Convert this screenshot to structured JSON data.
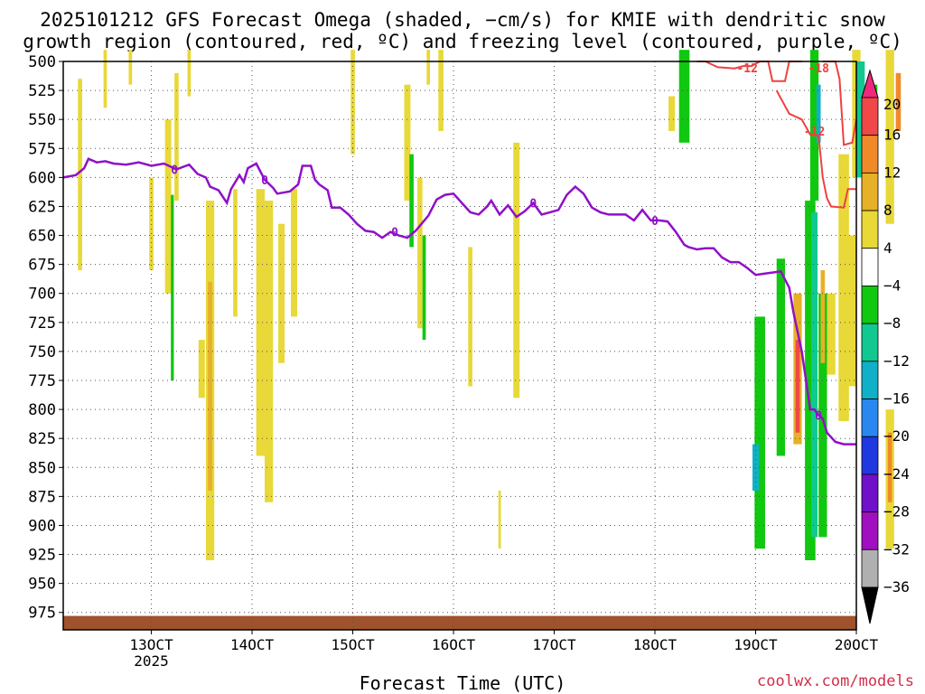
{
  "title_line1": "2025101212 GFS Forecast Omega (shaded, −cm/s) for KMIE with dendritic snow",
  "title_line2": "growth region (contoured, red, ºC) and freezing level (contoured, purple, ºC)",
  "credit": "coolwx.com/models",
  "chart_data": {
    "type": "heatmap",
    "xlabel": "Forecast Time (UTC)",
    "x_ticks": [
      "13OCT",
      "14OCT",
      "15OCT",
      "16OCT",
      "17OCT",
      "18OCT",
      "19OCT",
      "20OCT"
    ],
    "x_tick_sublabel": "2025",
    "y_ticks": [
      500,
      525,
      550,
      575,
      600,
      625,
      650,
      675,
      700,
      725,
      750,
      775,
      800,
      825,
      850,
      875,
      900,
      925,
      950,
      975
    ],
    "ylim": [
      500,
      990
    ],
    "xlim_hours": [
      -21,
      168
    ],
    "grid": true,
    "colorbar": {
      "labels": [
        "20",
        "16",
        "12",
        "8",
        "4",
        "−4",
        "−8",
        "−12",
        "−16",
        "−20",
        "−24",
        "−28",
        "−32",
        "−36"
      ],
      "colors": [
        "#f0287c",
        "#f04848",
        "#f08a28",
        "#e8b028",
        "#e8d838",
        "#ffffff",
        "#10c810",
        "#10c890",
        "#10b0c8",
        "#2888f0",
        "#2038e0",
        "#7010c8",
        "#a010c0",
        "#b0b0b0",
        "#000000"
      ]
    },
    "freezing_level": {
      "color": "#9010c8",
      "label": "0",
      "label_positions_hours": [
        5.5,
        27,
        58,
        91,
        120,
        159
      ],
      "points_hours_hpa": [
        [
          -21,
          600
        ],
        [
          -18,
          598
        ],
        [
          -16,
          592
        ],
        [
          -15,
          584
        ],
        [
          -13,
          587
        ],
        [
          -11,
          586
        ],
        [
          -9,
          588
        ],
        [
          -6,
          589
        ],
        [
          -3,
          587
        ],
        [
          0,
          590
        ],
        [
          3,
          588
        ],
        [
          6,
          593
        ],
        [
          9,
          589
        ],
        [
          11,
          597
        ],
        [
          13,
          600
        ],
        [
          14,
          608
        ],
        [
          16,
          611
        ],
        [
          18,
          622
        ],
        [
          19,
          610
        ],
        [
          21,
          598
        ],
        [
          22,
          604
        ],
        [
          23,
          592
        ],
        [
          25,
          588
        ],
        [
          27,
          602
        ],
        [
          29,
          609
        ],
        [
          30,
          614
        ],
        [
          33,
          612
        ],
        [
          35,
          606
        ],
        [
          36,
          590
        ],
        [
          38,
          590
        ],
        [
          39,
          602
        ],
        [
          40,
          606
        ],
        [
          42,
          611
        ],
        [
          43,
          626
        ],
        [
          45,
          626
        ],
        [
          47,
          632
        ],
        [
          49,
          640
        ],
        [
          51,
          646
        ],
        [
          53,
          647
        ],
        [
          55,
          652
        ],
        [
          57,
          647
        ],
        [
          59,
          650
        ],
        [
          61,
          652
        ],
        [
          63,
          646
        ],
        [
          66,
          633
        ],
        [
          68,
          619
        ],
        [
          70,
          615
        ],
        [
          72,
          614
        ],
        [
          74,
          622
        ],
        [
          76,
          630
        ],
        [
          78,
          632
        ],
        [
          80,
          625
        ],
        [
          81,
          620
        ],
        [
          83,
          632
        ],
        [
          85,
          624
        ],
        [
          87,
          634
        ],
        [
          89,
          629
        ],
        [
          91,
          622
        ],
        [
          93,
          632
        ],
        [
          95,
          630
        ],
        [
          97,
          628
        ],
        [
          99,
          615
        ],
        [
          101,
          608
        ],
        [
          103,
          614
        ],
        [
          105,
          626
        ],
        [
          107,
          630
        ],
        [
          109,
          632
        ],
        [
          111,
          632
        ],
        [
          113,
          632
        ],
        [
          115,
          637
        ],
        [
          117,
          628
        ],
        [
          119,
          637
        ],
        [
          121,
          637
        ],
        [
          123,
          638
        ],
        [
          125,
          647
        ],
        [
          127,
          658
        ],
        [
          128,
          660
        ],
        [
          130,
          662
        ],
        [
          132,
          661
        ],
        [
          134,
          661
        ],
        [
          136,
          669
        ],
        [
          138,
          673
        ],
        [
          140,
          673
        ],
        [
          142,
          678
        ],
        [
          144,
          684
        ],
        [
          146,
          683
        ],
        [
          148,
          682
        ],
        [
          150,
          681
        ],
        [
          151,
          688
        ],
        [
          152,
          695
        ],
        [
          153,
          716
        ],
        [
          155,
          750
        ],
        [
          156,
          775
        ],
        [
          157,
          800
        ],
        [
          158,
          800
        ],
        [
          159,
          805
        ],
        [
          160,
          808
        ],
        [
          161,
          820
        ],
        [
          163,
          828
        ],
        [
          165,
          830
        ],
        [
          168,
          830
        ]
      ]
    },
    "dendritic_contours": {
      "color": "#f04040",
      "labels": [
        "-12",
        "-12",
        "-18"
      ],
      "label_positions_hours_hpa": [
        [
          142,
          504
        ],
        [
          158,
          560
        ],
        [
          159,
          495
        ]
      ],
      "upper_line_hours_hpa": [
        [
          130,
          490
        ],
        [
          132,
          492
        ],
        [
          135,
          505
        ],
        [
          139,
          506
        ],
        [
          141,
          504
        ],
        [
          143,
          504
        ],
        [
          145,
          495
        ],
        [
          147,
          495
        ],
        [
          148,
          517
        ],
        [
          151,
          517
        ],
        [
          152,
          495
        ],
        [
          153,
          495
        ],
        [
          155,
          480
        ]
      ],
      "lower_line_hours_hpa": [
        [
          149,
          525
        ],
        [
          152,
          545
        ],
        [
          155,
          550
        ],
        [
          157,
          563
        ],
        [
          159,
          564
        ],
        [
          160,
          600
        ],
        [
          161,
          618
        ],
        [
          162,
          625
        ],
        [
          165,
          626
        ],
        [
          166,
          610
        ],
        [
          168,
          610
        ]
      ],
      "right_line_hours_hpa": [
        [
          160,
          500
        ],
        [
          161,
          490
        ],
        [
          163,
          480
        ],
        [
          164,
          515
        ],
        [
          165,
          572
        ],
        [
          167,
          570
        ],
        [
          168,
          550
        ]
      ]
    },
    "omega_shading_note": "shaded regions of upward (positive) and downward (negative) omega; largest values near 19OCT-20OCT"
  }
}
